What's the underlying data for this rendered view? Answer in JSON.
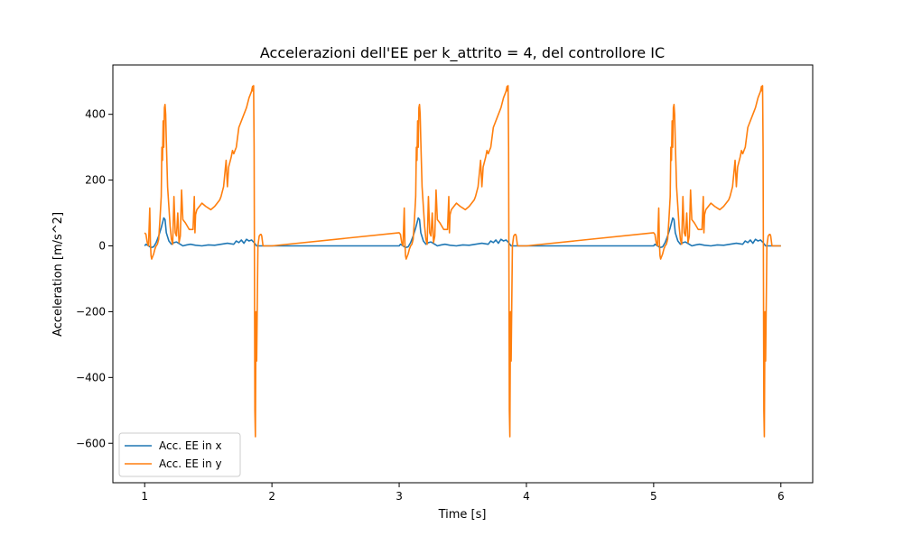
{
  "chart_data": {
    "type": "line",
    "title": "Accelerazioni dell'EE per k_attrito = 4, del controllore IC",
    "xlabel": "Time [s]",
    "ylabel": "Acceleration [m/s^2]",
    "xlim": [
      0.75,
      6.25
    ],
    "ylim": [
      -720,
      550
    ],
    "xticks": [
      1,
      2,
      3,
      4,
      5,
      6
    ],
    "yticks": [
      -600,
      -400,
      -200,
      0,
      200,
      400
    ],
    "xtick_labels": [
      "1",
      "2",
      "3",
      "4",
      "5",
      "6"
    ],
    "ytick_labels": [
      "−600",
      "−400",
      "−200",
      "0",
      "200",
      "400"
    ],
    "grid": false,
    "legend_position": "lower-left",
    "period": 2.0,
    "periods": 3,
    "series": [
      {
        "name": "Acc. EE in x",
        "color": "#1f77b4",
        "x": [
          1.0,
          1.01,
          1.03,
          1.05,
          1.07,
          1.09,
          1.11,
          1.13,
          1.15,
          1.16,
          1.17,
          1.19,
          1.21,
          1.23,
          1.25,
          1.28,
          1.3,
          1.33,
          1.36,
          1.4,
          1.45,
          1.5,
          1.55,
          1.6,
          1.65,
          1.7,
          1.72,
          1.74,
          1.76,
          1.78,
          1.8,
          1.82,
          1.84,
          1.86,
          1.88,
          1.9,
          1.93,
          1.95,
          1.97,
          2.0
        ],
        "values": [
          0,
          5,
          0,
          -5,
          -3,
          10,
          30,
          55,
          85,
          80,
          40,
          15,
          5,
          10,
          12,
          5,
          0,
          3,
          5,
          2,
          0,
          3,
          2,
          5,
          8,
          5,
          15,
          10,
          18,
          8,
          20,
          15,
          18,
          10,
          0,
          0,
          0,
          0,
          0,
          0
        ]
      },
      {
        "name": "Acc. EE in y",
        "color": "#ff7f0e",
        "x": [
          1.0,
          1.01,
          1.02,
          1.03,
          1.04,
          1.045,
          1.05,
          1.055,
          1.06,
          1.07,
          1.08,
          1.09,
          1.1,
          1.11,
          1.12,
          1.13,
          1.135,
          1.14,
          1.145,
          1.15,
          1.155,
          1.16,
          1.165,
          1.17,
          1.175,
          1.18,
          1.19,
          1.2,
          1.21,
          1.22,
          1.23,
          1.24,
          1.25,
          1.26,
          1.27,
          1.28,
          1.29,
          1.3,
          1.32,
          1.35,
          1.38,
          1.39,
          1.395,
          1.4,
          1.41,
          1.43,
          1.45,
          1.48,
          1.5,
          1.52,
          1.55,
          1.57,
          1.59,
          1.6,
          1.62,
          1.64,
          1.65,
          1.66,
          1.68,
          1.69,
          1.7,
          1.72,
          1.74,
          1.75,
          1.77,
          1.78,
          1.79,
          1.8,
          1.82,
          1.83,
          1.84,
          1.845,
          1.848,
          1.85,
          1.853,
          1.856,
          1.86,
          1.863,
          1.866,
          1.87,
          1.875,
          1.88,
          1.89,
          1.9,
          1.91,
          1.915,
          1.92,
          1.93,
          1.95,
          2.0
        ],
        "values": [
          40,
          35,
          10,
          0,
          115,
          10,
          -30,
          -40,
          -35,
          -25,
          -10,
          0,
          5,
          20,
          80,
          150,
          300,
          260,
          380,
          300,
          420,
          430,
          400,
          320,
          250,
          180,
          120,
          60,
          20,
          5,
          150,
          40,
          30,
          100,
          10,
          30,
          170,
          80,
          70,
          50,
          50,
          150,
          40,
          95,
          110,
          120,
          130,
          120,
          115,
          110,
          120,
          130,
          140,
          150,
          180,
          260,
          180,
          240,
          270,
          290,
          280,
          300,
          360,
          370,
          390,
          400,
          410,
          420,
          450,
          460,
          470,
          480,
          485,
          480,
          470,
          487,
          300,
          -100,
          -500,
          -580,
          -200,
          -350,
          0,
          30,
          35,
          35,
          30,
          0,
          0,
          0
        ]
      }
    ]
  }
}
